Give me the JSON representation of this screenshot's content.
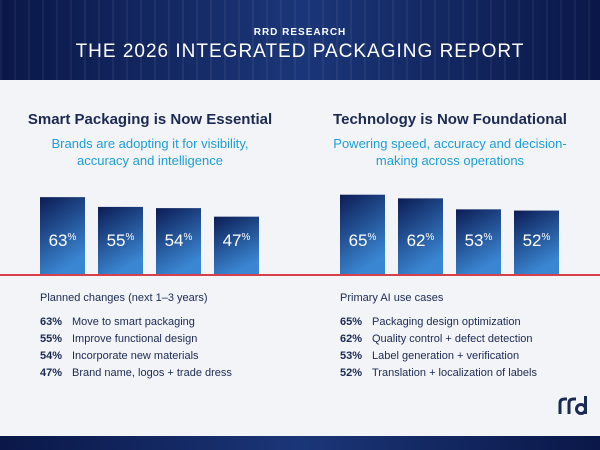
{
  "header": {
    "kicker": "RRD RESEARCH",
    "title": "THE 2026 INTEGRATED PACKAGING REPORT"
  },
  "colors": {
    "bar_top": "#0c1c55",
    "bar_bottom": "#3a86d2",
    "baseline": "#d6404b",
    "heading": "#1b2a52",
    "subheading": "#1d9fd6"
  },
  "chart_data": [
    {
      "type": "bar",
      "title": "Smart Packaging is Now Essential",
      "subtitle": "Brands are adopting it for visibility, accuracy and intelligence",
      "categories": [
        "Move to smart packaging",
        "Improve functional design",
        "Incorporate new materials",
        "Brand name, logos + trade dress"
      ],
      "values": [
        63,
        55,
        54,
        47
      ],
      "value_labels": [
        "63",
        "55",
        "54",
        "47"
      ],
      "unit": "%",
      "ylim": [
        0,
        100
      ],
      "grid": false,
      "list_title": "Planned changes (next 1–3 years)",
      "list": [
        {
          "pct": "63%",
          "label": "Move to smart packaging"
        },
        {
          "pct": "55%",
          "label": "Improve functional design"
        },
        {
          "pct": "54%",
          "label": "Incorporate new materials"
        },
        {
          "pct": "47%",
          "label": "Brand name, logos + trade dress"
        }
      ]
    },
    {
      "type": "bar",
      "title": "Technology is Now Foundational",
      "subtitle": "Powering speed, accuracy and decision-making across operations",
      "categories": [
        "Packaging design optimization",
        "Quality control + defect detection",
        "Label generation + verification",
        "Translation + localization of labels"
      ],
      "values": [
        65,
        62,
        53,
        52
      ],
      "value_labels": [
        "65",
        "62",
        "53",
        "52"
      ],
      "unit": "%",
      "ylim": [
        0,
        100
      ],
      "grid": false,
      "list_title": "Primary AI use cases",
      "list": [
        {
          "pct": "65%",
          "label": "Packaging design optimization"
        },
        {
          "pct": "62%",
          "label": "Quality control + defect detection"
        },
        {
          "pct": "53%",
          "label": "Label generation + verification"
        },
        {
          "pct": "52%",
          "label": "Translation + localization of labels"
        }
      ]
    }
  ],
  "logo": {
    "icon": "rrd-logo-icon",
    "text": "rrd"
  }
}
